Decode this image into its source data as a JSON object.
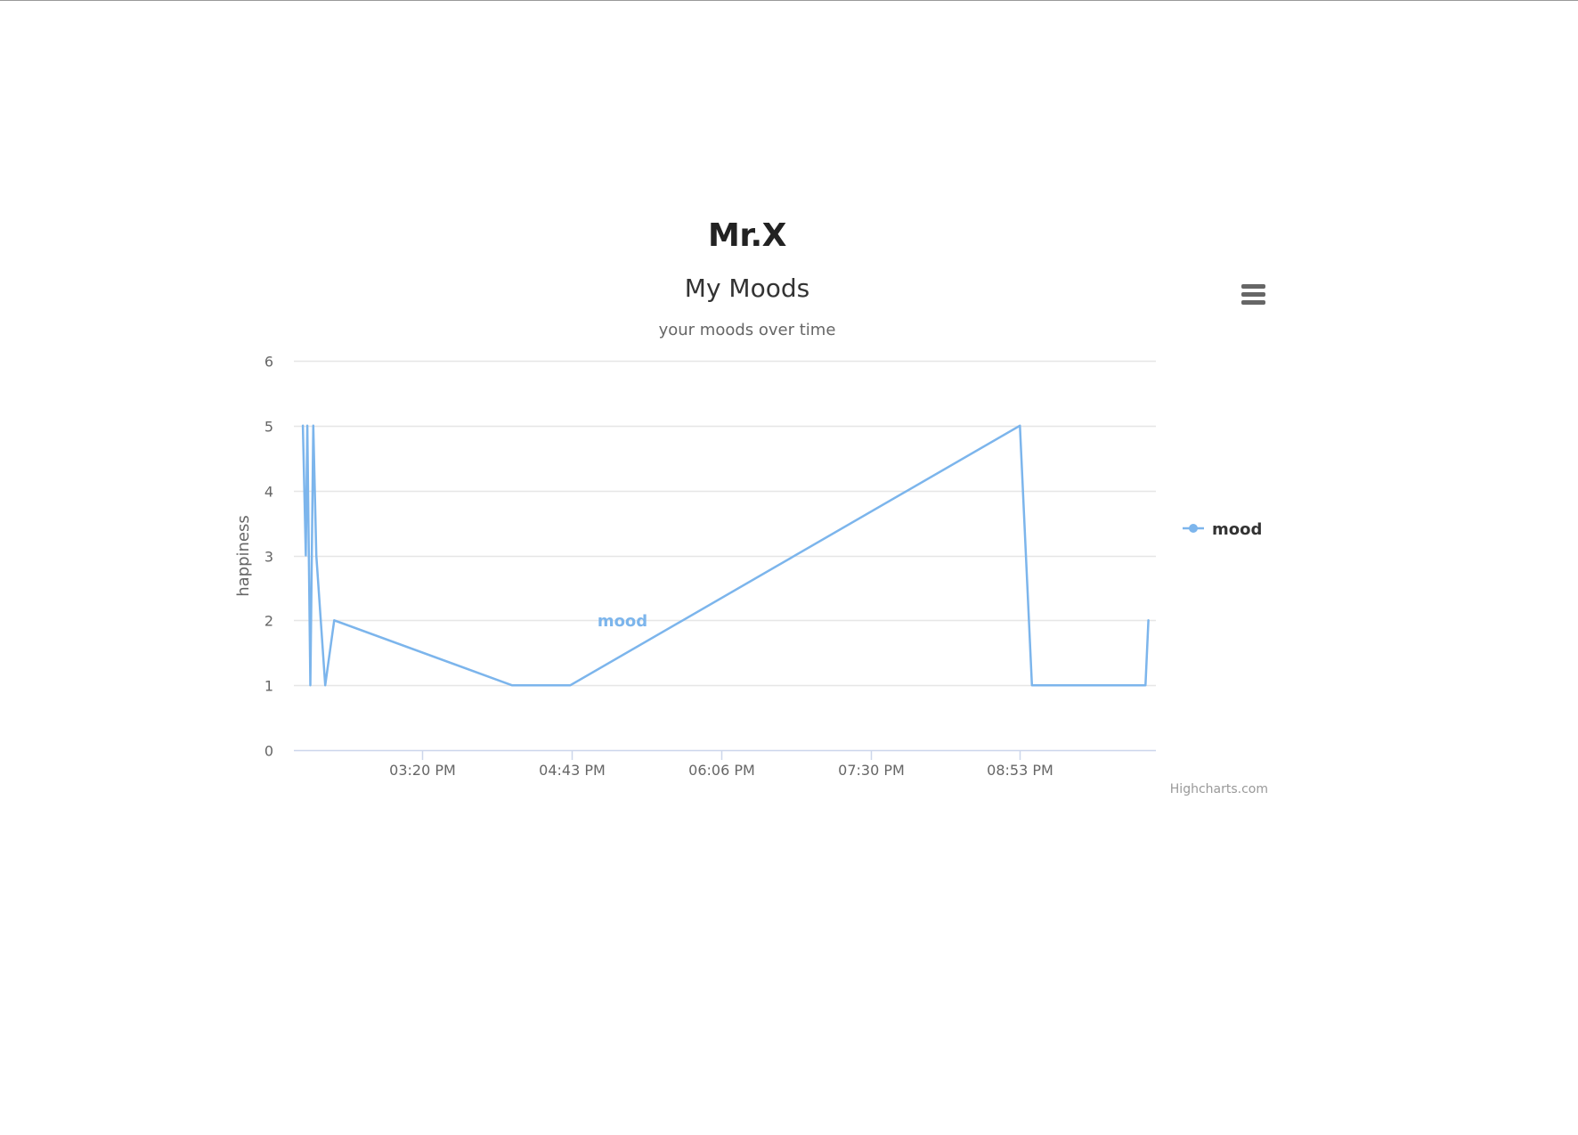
{
  "page": {
    "heading": "Mr.X"
  },
  "chart": {
    "title": "My Moods",
    "subtitle": "your moods over time",
    "credits": "Highcharts.com",
    "menu_icon": "hamburger-menu-icon",
    "series_color": "#7cb5ec",
    "grid_color": "#e6e6e6",
    "axis_line_color": "#ccd6eb"
  },
  "chart_data": {
    "type": "line",
    "title": "My Moods",
    "subtitle": "your moods over time",
    "xlabel": "",
    "ylabel": "happiness",
    "ylim": [
      0,
      6
    ],
    "yticks": [
      0,
      1,
      2,
      3,
      4,
      5,
      6
    ],
    "x_minutes_range": [
      690,
      1267
    ],
    "xticks": [
      {
        "minutes": 776,
        "label": "03:20 PM"
      },
      {
        "minutes": 876,
        "label": "04:43 PM"
      },
      {
        "minutes": 976,
        "label": "06:06 PM"
      },
      {
        "minutes": 1076,
        "label": "07:30 PM"
      },
      {
        "minutes": 1176,
        "label": "08:53 PM"
      }
    ],
    "series": [
      {
        "name": "mood",
        "series_label": "mood",
        "points": [
          {
            "x": 696,
            "y": 5
          },
          {
            "x": 698,
            "y": 3
          },
          {
            "x": 699,
            "y": 5
          },
          {
            "x": 701,
            "y": 1
          },
          {
            "x": 703,
            "y": 5
          },
          {
            "x": 705,
            "y": 3
          },
          {
            "x": 711,
            "y": 1
          },
          {
            "x": 717,
            "y": 2
          },
          {
            "x": 836,
            "y": 1
          },
          {
            "x": 875,
            "y": 1
          },
          {
            "x": 1176,
            "y": 5
          },
          {
            "x": 1184,
            "y": 1
          },
          {
            "x": 1260,
            "y": 1
          },
          {
            "x": 1262,
            "y": 2
          }
        ]
      }
    ],
    "legend": [
      {
        "name": "mood",
        "position": "right"
      }
    ]
  }
}
